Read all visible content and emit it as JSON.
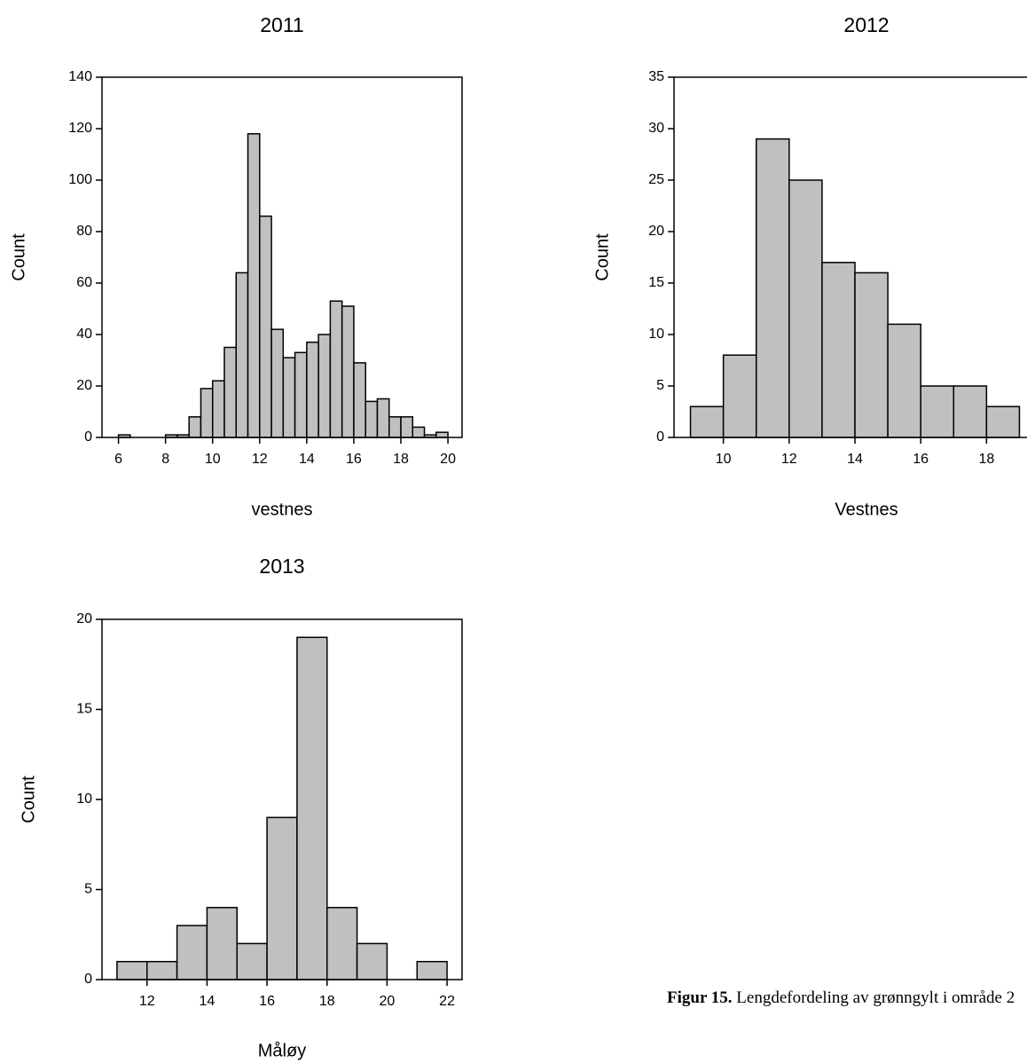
{
  "chart_data": [
    {
      "type": "histogram",
      "title": "2011",
      "x_label": "vestnes",
      "y_label": "Count",
      "color": "#c0c0c0",
      "bins": [
        6,
        6.5,
        7,
        7.5,
        8,
        8.5,
        9,
        9.5,
        10,
        10.5,
        11,
        11.5,
        12,
        12.5,
        13,
        13.5,
        14,
        14.5,
        15,
        15.5,
        16,
        16.5,
        17,
        17.5,
        18,
        18.5,
        19,
        19.5,
        20
      ],
      "values": [
        1,
        0,
        0,
        0,
        1,
        1,
        8,
        19,
        22,
        35,
        64,
        118,
        86,
        42,
        31,
        33,
        37,
        40,
        53,
        51,
        29,
        14,
        15,
        8,
        8,
        4,
        1,
        2
      ],
      "xlim": [
        5.3,
        20.6
      ],
      "xticks": [
        6,
        8,
        10,
        12,
        14,
        16,
        18,
        20
      ],
      "ylim": [
        0,
        140
      ],
      "yticks": [
        0,
        20,
        40,
        60,
        80,
        100,
        120,
        140
      ]
    },
    {
      "type": "histogram",
      "title": "2012",
      "x_label": "Vestnes",
      "y_label": "Count",
      "color": "#c0c0c0",
      "bins": [
        9,
        10,
        11,
        12,
        13,
        14,
        15,
        16,
        17,
        18,
        19
      ],
      "values": [
        3,
        8,
        29,
        25,
        17,
        16,
        11,
        5,
        5,
        3
      ],
      "xlim": [
        8.5,
        19.5
      ],
      "xticks": [
        10,
        12,
        14,
        16,
        18
      ],
      "ylim": [
        0,
        35
      ],
      "yticks": [
        0,
        5,
        10,
        15,
        20,
        25,
        30,
        35
      ]
    },
    {
      "type": "histogram",
      "title": "2013",
      "x_label": "Måløy",
      "y_label": "Count",
      "color": "#c0c0c0",
      "bins": [
        11,
        12,
        13,
        14,
        15,
        16,
        17,
        18,
        19,
        20,
        21,
        22
      ],
      "values": [
        1,
        1,
        3,
        4,
        2,
        9,
        19,
        4,
        2,
        0,
        1
      ],
      "xlim": [
        10.5,
        22.5
      ],
      "xticks": [
        12,
        14,
        16,
        18,
        20,
        22
      ],
      "ylim": [
        0,
        20
      ],
      "yticks": [
        0,
        5,
        10,
        15,
        20
      ]
    }
  ],
  "caption": {
    "label": "Figur 15.",
    "text": "Lengdefordeling av grønngylt i område 2"
  }
}
